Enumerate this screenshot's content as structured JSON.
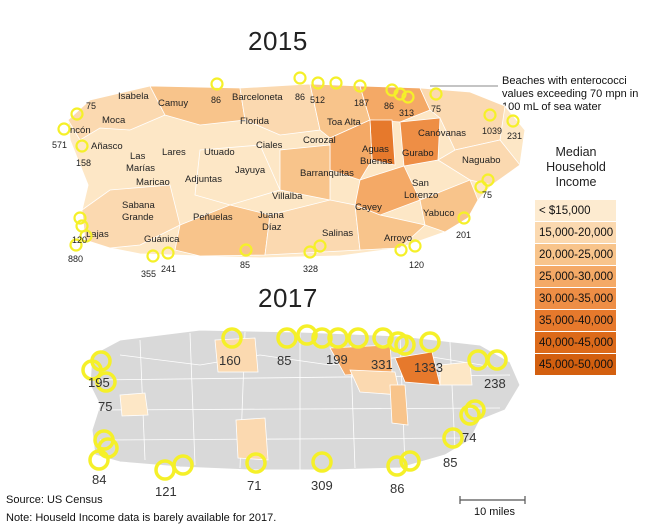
{
  "years": {
    "y2015": "2015",
    "y2017": "2017"
  },
  "callout": "Beaches with enterococci values exceeding 70  mpn in 100  mL of sea water",
  "legend": {
    "title": "Median Household Income",
    "items": [
      {
        "label": "< $15,000",
        "color": "#fdebd0"
      },
      {
        "label": "15,000-20,000",
        "color": "#fbd9b0"
      },
      {
        "label": "20,000-25,000",
        "color": "#f8c48b"
      },
      {
        "label": "25,000-30,000",
        "color": "#f4a966"
      },
      {
        "label": "30,000-35,000",
        "color": "#ee8e45"
      },
      {
        "label": "35,000-40,000",
        "color": "#e6792c"
      },
      {
        "label": "40,000-45,000",
        "color": "#dc6a1a"
      },
      {
        "label": "45,000-50,000",
        "color": "#d35f0f"
      }
    ]
  },
  "map2015": {
    "municipalities": [
      "Isabela",
      "Camuy",
      "Barceloneta",
      "Moca",
      "Florida",
      "Toa Alta",
      "Canóvanas",
      "Añasco",
      "Las Marías",
      "Lares",
      "Utuado",
      "Ciales",
      "Corozal",
      "Aguas Buenas",
      "Gurabo",
      "Naguabo",
      "Maricao",
      "Adjuntas",
      "Jayuya",
      "Barranquitas",
      "San Lorenzo",
      "Villalba",
      "Sabana Grande",
      "Peñuelas",
      "Juana Díaz",
      "Cayey",
      "Yabuco",
      "Lajas",
      "Guánica",
      "Salinas",
      "Arroyo",
      "Rincón"
    ],
    "beach_labels": [
      "75",
      "86",
      "86",
      "512",
      "187",
      "86",
      "313",
      "75",
      "1039",
      "231",
      "571",
      "158",
      "75",
      "120",
      "880",
      "355",
      "241",
      "85",
      "328",
      "120",
      "201"
    ]
  },
  "map2017": {
    "beach_labels": [
      "160",
      "85",
      "199",
      "331",
      "1333",
      "238",
      "195",
      "75",
      "74",
      "84",
      "121",
      "71",
      "309",
      "86",
      "85"
    ]
  },
  "scale": "10 miles",
  "notes": {
    "source": "Source: US Census",
    "note": "Note: Houseld Income data is barely available for 2017."
  },
  "colors": {
    "marker": "#f5f029",
    "map_grey": "#d9d9d9"
  }
}
